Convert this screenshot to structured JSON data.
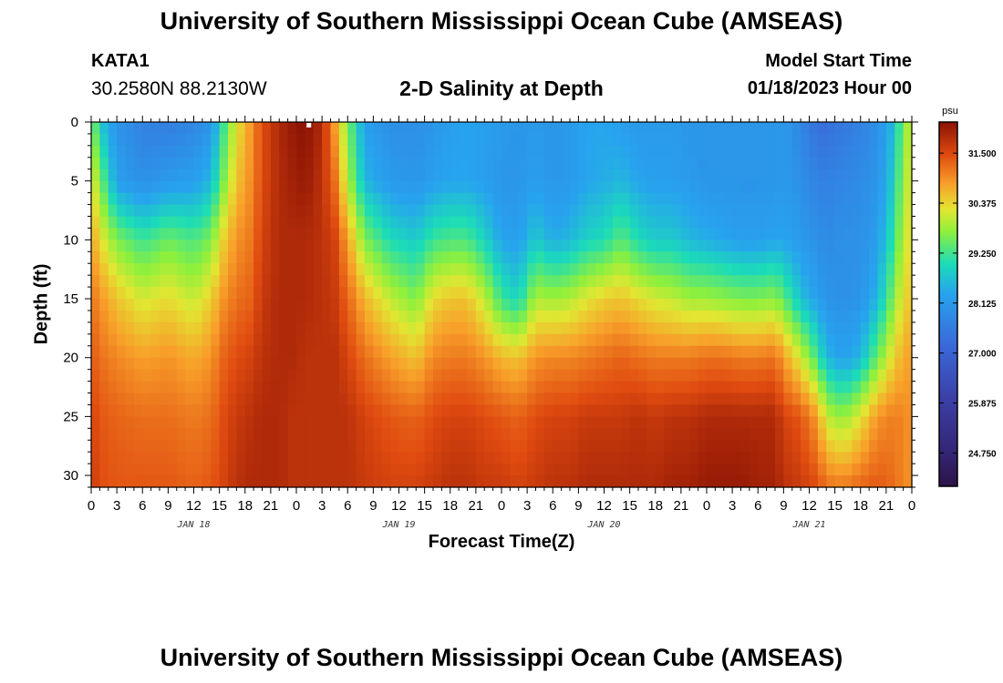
{
  "header": {
    "title": "University of Southern Mississippi Ocean Cube (AMSEAS)",
    "station": "KATA1",
    "coords": "30.2580N  88.2130W",
    "plot_title": "2-D Salinity at Depth",
    "model_start_label": "Model Start Time",
    "model_start_date": "01/18/2023 Hour 00"
  },
  "footer": {
    "title": "University of Southern Mississippi Ocean Cube (AMSEAS)"
  },
  "chart_data": {
    "type": "heatmap",
    "title": "2-D Salinity at Depth",
    "xlabel": "Forecast Time(Z)",
    "ylabel": "Depth (ft)",
    "x_hours_range": [
      0,
      96
    ],
    "ylim": [
      0,
      31
    ],
    "y_ticks": [
      "0",
      "5",
      "10",
      "15",
      "20",
      "25",
      "30"
    ],
    "x_tick_labels": [
      "0",
      "3",
      "6",
      "9",
      "12",
      "15",
      "18",
      "21",
      "0",
      "3",
      "6",
      "9",
      "12",
      "15",
      "18",
      "21",
      "0",
      "3",
      "6",
      "9",
      "12",
      "15",
      "18",
      "21",
      "0",
      "3",
      "6",
      "9",
      "12",
      "15",
      "18",
      "21",
      "0"
    ],
    "date_labels": [
      {
        "hour": 12,
        "text": "JAN 18"
      },
      {
        "hour": 36,
        "text": "JAN 19"
      },
      {
        "hour": 60,
        "text": "JAN 20"
      },
      {
        "hour": 84,
        "text": "JAN 21"
      }
    ],
    "colorbar": {
      "unit": "psu",
      "min": 24.0,
      "max": 32.2,
      "tick_labels": [
        "31.500",
        "30.375",
        "29.250",
        "28.125",
        "27.000",
        "25.875",
        "24.750"
      ]
    },
    "field": {
      "grid": "time x depth",
      "hours": [
        0,
        1,
        3,
        6,
        9,
        12,
        14,
        15.5,
        17,
        18.5,
        20,
        22,
        23.5,
        25,
        27,
        28.5,
        30,
        32,
        35,
        38,
        40,
        42,
        44,
        46,
        48,
        50,
        52,
        54,
        56,
        58,
        60,
        62,
        64,
        66,
        68,
        70,
        72,
        74,
        76,
        78,
        80,
        81,
        83,
        85,
        86,
        88,
        90,
        92,
        94,
        95,
        96
      ],
      "profiles": [
        {
          "sal": [
            29.8,
            30.3,
            30.8,
            31.2,
            31.4,
            31.6,
            31.7
          ]
        },
        {
          "sal": [
            28.8,
            29.6,
            30.3,
            30.9,
            31.2,
            31.4,
            31.5
          ]
        },
        {
          "sal": [
            28.1,
            28.3,
            29.6,
            30.5,
            31.0,
            31.3,
            31.4
          ]
        },
        {
          "sal": [
            27.7,
            28.0,
            29.2,
            30.1,
            30.8,
            31.2,
            31.4
          ]
        },
        {
          "sal": [
            27.6,
            28.2,
            29.5,
            30.3,
            30.9,
            31.2,
            31.4
          ]
        },
        {
          "sal": [
            27.8,
            28.3,
            29.3,
            30.0,
            30.7,
            31.1,
            31.3
          ]
        },
        {
          "sal": [
            28.1,
            28.6,
            29.6,
            30.4,
            30.9,
            31.2,
            31.4
          ]
        },
        {
          "sal": [
            29.2,
            29.6,
            30.4,
            30.9,
            31.3,
            31.5,
            31.6
          ]
        },
        {
          "sal": [
            30.2,
            30.5,
            30.9,
            31.2,
            31.5,
            31.7,
            31.8
          ]
        },
        {
          "sal": [
            30.8,
            30.9,
            31.1,
            31.3,
            31.6,
            31.8,
            31.9
          ]
        },
        {
          "sal": [
            31.5,
            31.5,
            31.6,
            31.7,
            31.8,
            31.9,
            31.9
          ]
        },
        {
          "sal": [
            31.9,
            31.9,
            31.9,
            31.9,
            31.9,
            31.9,
            31.9
          ]
        },
        {
          "sal": [
            32.1,
            32.0,
            31.9,
            31.9,
            31.9,
            31.8,
            31.8
          ]
        },
        {
          "sal": [
            32.2,
            32.1,
            31.9,
            31.9,
            31.8,
            31.8,
            31.8
          ]
        },
        {
          "sal": [
            31.9,
            31.8,
            31.8,
            31.8,
            31.8,
            31.8,
            31.8
          ]
        },
        {
          "sal": [
            30.8,
            31.2,
            31.6,
            31.7,
            31.8,
            31.8,
            31.8
          ]
        },
        {
          "sal": [
            29.6,
            29.9,
            30.8,
            31.3,
            31.6,
            31.8,
            31.8
          ]
        },
        {
          "sal": [
            28.3,
            28.6,
            29.6,
            30.6,
            31.2,
            31.6,
            31.7
          ]
        },
        {
          "sal": [
            28.0,
            28.2,
            29.0,
            30.0,
            30.8,
            31.4,
            31.6
          ]
        },
        {
          "sal": [
            28.0,
            28.1,
            28.8,
            29.6,
            30.5,
            31.3,
            31.6
          ]
        },
        {
          "sal": [
            28.1,
            28.3,
            29.2,
            30.3,
            31.0,
            31.5,
            31.7
          ]
        },
        {
          "sal": [
            28.3,
            28.4,
            29.3,
            30.5,
            31.1,
            31.6,
            31.8
          ]
        },
        {
          "sal": [
            28.4,
            28.4,
            29.3,
            30.5,
            31.1,
            31.6,
            31.8
          ]
        },
        {
          "sal": [
            28.3,
            28.3,
            28.9,
            30.0,
            30.9,
            31.5,
            31.7
          ]
        },
        {
          "sal": [
            28.2,
            28.1,
            28.4,
            29.2,
            30.6,
            31.4,
            31.7
          ]
        },
        {
          "sal": [
            28.1,
            28.1,
            28.3,
            28.9,
            30.5,
            31.3,
            31.6
          ]
        },
        {
          "sal": [
            28.2,
            28.3,
            28.8,
            29.9,
            30.9,
            31.5,
            31.7
          ]
        },
        {
          "sal": [
            28.1,
            28.1,
            28.5,
            29.8,
            31.0,
            31.6,
            31.8
          ]
        },
        {
          "sal": [
            28.2,
            28.2,
            28.6,
            29.9,
            31.0,
            31.6,
            31.8
          ]
        },
        {
          "sal": [
            28.4,
            28.4,
            28.9,
            30.2,
            31.1,
            31.7,
            31.9
          ]
        },
        {
          "sal": [
            28.4,
            28.5,
            29.0,
            30.4,
            31.2,
            31.7,
            31.9
          ]
        },
        {
          "sal": [
            28.3,
            28.6,
            29.4,
            30.5,
            31.3,
            31.7,
            31.9
          ]
        },
        {
          "sal": [
            28.2,
            28.4,
            29.0,
            30.3,
            31.2,
            31.8,
            31.9
          ]
        },
        {
          "sal": [
            28.2,
            28.3,
            28.8,
            30.1,
            31.1,
            31.7,
            31.9
          ]
        },
        {
          "sal": [
            28.2,
            28.3,
            28.8,
            30.0,
            31.1,
            31.8,
            32.0
          ]
        },
        {
          "sal": [
            28.1,
            28.2,
            28.6,
            29.8,
            31.1,
            31.8,
            32.0
          ]
        },
        {
          "sal": [
            28.1,
            28.1,
            28.5,
            29.8,
            31.2,
            31.9,
            32.1
          ]
        },
        {
          "sal": [
            28.1,
            28.1,
            28.4,
            29.7,
            31.2,
            31.9,
            32.1
          ]
        },
        {
          "sal": [
            28.1,
            28.1,
            28.3,
            29.6,
            31.1,
            31.9,
            32.1
          ]
        },
        {
          "sal": [
            28.1,
            28.1,
            28.3,
            29.6,
            31.1,
            31.9,
            32.0
          ]
        },
        {
          "sal": [
            28.1,
            28.1,
            28.4,
            29.7,
            31.2,
            31.9,
            32.0
          ]
        },
        {
          "sal": [
            28.2,
            28.2,
            28.4,
            29.4,
            30.8,
            31.6,
            31.8
          ]
        },
        {
          "sal": [
            27.8,
            28.0,
            28.2,
            28.7,
            30.1,
            31.4,
            31.7
          ]
        },
        {
          "sal": [
            27.3,
            27.7,
            28.0,
            28.3,
            29.2,
            30.8,
            31.5
          ]
        },
        {
          "sal": [
            27.3,
            27.7,
            27.9,
            28.1,
            28.6,
            30.0,
            31.2
          ]
        },
        {
          "sal": [
            27.5,
            27.8,
            28.0,
            28.0,
            28.3,
            29.7,
            31.1
          ]
        },
        {
          "sal": [
            27.7,
            27.9,
            28.0,
            28.1,
            28.6,
            30.2,
            31.3
          ]
        },
        {
          "sal": [
            28.0,
            28.1,
            28.3,
            28.6,
            29.5,
            30.9,
            31.4
          ]
        },
        {
          "sal": [
            28.7,
            28.9,
            29.2,
            29.7,
            30.4,
            31.1,
            31.2
          ]
        },
        {
          "sal": [
            29.6,
            29.8,
            30.0,
            30.3,
            30.7,
            31.0,
            31.0
          ]
        },
        {
          "sal": [
            30.1,
            30.2,
            30.3,
            30.5,
            30.8,
            30.9,
            30.9
          ]
        }
      ],
      "depths_ft": [
        0,
        5,
        10,
        15,
        20,
        25,
        31
      ]
    }
  }
}
